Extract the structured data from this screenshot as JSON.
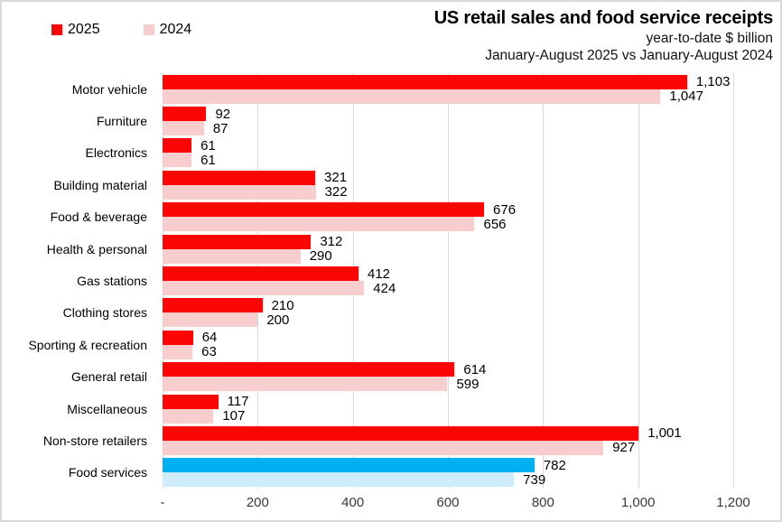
{
  "header": {
    "title": "US retail sales and food service receipts",
    "subtitle_units": "year-to-date $ billion",
    "subtitle_period": "January-August 2025 vs January-August 2024"
  },
  "legend": {
    "items": [
      {
        "label": "2025",
        "color": "#fb0505"
      },
      {
        "label": "2024",
        "color": "#f8cdcd"
      }
    ]
  },
  "colors": {
    "bar_2025": "#fb0505",
    "bar_2024": "#f8cdcd",
    "highlight_2025": "#00b0f0",
    "highlight_2024": "#cfecfa",
    "gridline": "#d9d9d9",
    "axis_text": "#3a3a3a"
  },
  "chart_data": {
    "type": "bar",
    "orientation": "horizontal",
    "title": "US retail sales and food service receipts",
    "subtitle": "year-to-date $ billion — January-August 2025 vs January-August 2024",
    "categories": [
      "Motor vehicle",
      "Furniture",
      "Electronics",
      "Building material",
      "Food & beverage",
      "Health & personal",
      "Gas stations",
      "Clothing stores",
      "Sporting & recreation",
      "General retail",
      "Miscellaneous",
      "Non-store retailers",
      "Food services"
    ],
    "series": [
      {
        "name": "2025",
        "values": [
          1103,
          92,
          61,
          321,
          676,
          312,
          412,
          210,
          64,
          614,
          117,
          1001,
          782
        ],
        "labels": [
          "1,103",
          "92",
          "61",
          "321",
          "676",
          "312",
          "412",
          "210",
          "64",
          "614",
          "117",
          "1,001",
          "782"
        ]
      },
      {
        "name": "2024",
        "values": [
          1047,
          87,
          61,
          322,
          656,
          290,
          424,
          200,
          63,
          599,
          107,
          927,
          739
        ],
        "labels": [
          "1,047",
          "87",
          "61",
          "322",
          "656",
          "290",
          "424",
          "200",
          "63",
          "599",
          "107",
          "927",
          "739"
        ]
      }
    ],
    "highlight_category": "Food services",
    "x_axis": {
      "tick_labels": [
        "-",
        "200",
        "400",
        "600",
        "800",
        "1,000",
        "1,200"
      ],
      "tick_values": [
        0,
        200,
        400,
        600,
        800,
        1000,
        1200
      ],
      "xlim": [
        0,
        1200
      ]
    },
    "grid": true,
    "legend_position": "top-left"
  }
}
